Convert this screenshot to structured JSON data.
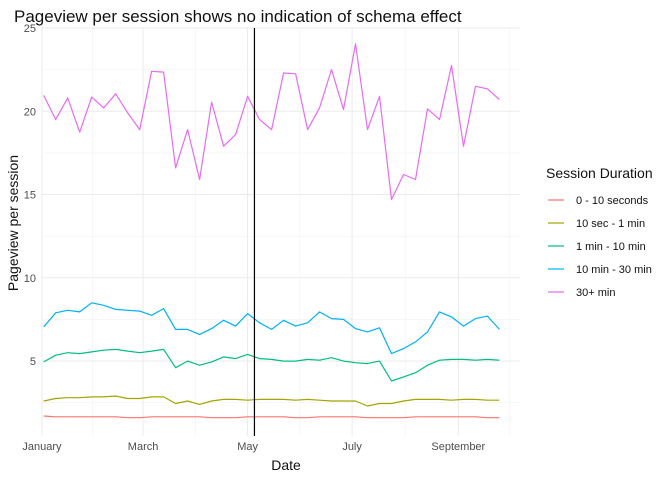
{
  "chart_data": {
    "type": "line",
    "title": "Pageview per session shows no indication of schema effect",
    "xlabel": "Date",
    "ylabel": "Pageview per session",
    "ylim": [
      0.5,
      25
    ],
    "yticks": [
      5,
      10,
      15,
      20,
      25
    ],
    "xlim": [
      "2017-01-01",
      "2017-10-07"
    ],
    "xticks": [
      {
        "date": "2017-01-01",
        "label": "January"
      },
      {
        "date": "2017-03-01",
        "label": "March"
      },
      {
        "date": "2017-05-01",
        "label": "May"
      },
      {
        "date": "2017-07-01",
        "label": "July"
      },
      {
        "date": "2017-09-01",
        "label": "September"
      }
    ],
    "grid": true,
    "legend_position": "right",
    "legend_title": "Session Duration",
    "annotation_vline": "2017-05-05",
    "x": [
      "2017-01-02",
      "2017-01-09",
      "2017-01-16",
      "2017-01-23",
      "2017-01-30",
      "2017-02-06",
      "2017-02-13",
      "2017-02-20",
      "2017-02-27",
      "2017-03-06",
      "2017-03-13",
      "2017-03-20",
      "2017-03-27",
      "2017-04-03",
      "2017-04-10",
      "2017-04-17",
      "2017-04-24",
      "2017-05-01",
      "2017-05-08",
      "2017-05-15",
      "2017-05-22",
      "2017-05-29",
      "2017-06-05",
      "2017-06-12",
      "2017-06-19",
      "2017-06-26",
      "2017-07-03",
      "2017-07-10",
      "2017-07-17",
      "2017-07-24",
      "2017-07-31",
      "2017-08-07",
      "2017-08-14",
      "2017-08-21",
      "2017-08-28",
      "2017-09-04",
      "2017-09-11",
      "2017-09-18",
      "2017-09-25"
    ],
    "series": [
      {
        "name": "0 - 10 seconds",
        "color": "#F8766D",
        "values": [
          1.7,
          1.65,
          1.65,
          1.65,
          1.65,
          1.65,
          1.65,
          1.6,
          1.6,
          1.65,
          1.65,
          1.65,
          1.65,
          1.65,
          1.6,
          1.6,
          1.6,
          1.65,
          1.65,
          1.65,
          1.65,
          1.6,
          1.6,
          1.65,
          1.65,
          1.65,
          1.65,
          1.6,
          1.6,
          1.6,
          1.6,
          1.65,
          1.65,
          1.65,
          1.65,
          1.65,
          1.65,
          1.6,
          1.6
        ]
      },
      {
        "name": "10 sec - 1 min",
        "color": "#A3A500",
        "values": [
          2.6,
          2.75,
          2.8,
          2.8,
          2.85,
          2.85,
          2.9,
          2.75,
          2.75,
          2.85,
          2.85,
          2.45,
          2.6,
          2.4,
          2.6,
          2.7,
          2.7,
          2.65,
          2.7,
          2.7,
          2.7,
          2.65,
          2.7,
          2.65,
          2.6,
          2.6,
          2.6,
          2.3,
          2.45,
          2.45,
          2.6,
          2.7,
          2.7,
          2.7,
          2.65,
          2.7,
          2.7,
          2.65,
          2.65
        ]
      },
      {
        "name": "1 min - 10 min",
        "color": "#00BF7D",
        "values": [
          4.95,
          5.35,
          5.5,
          5.45,
          5.55,
          5.65,
          5.7,
          5.6,
          5.5,
          5.6,
          5.7,
          4.6,
          5.0,
          4.75,
          4.95,
          5.25,
          5.15,
          5.4,
          5.15,
          5.1,
          5.0,
          5.0,
          5.1,
          5.05,
          5.2,
          5.0,
          4.9,
          4.85,
          5.0,
          3.8,
          4.05,
          4.3,
          4.75,
          5.05,
          5.1,
          5.1,
          5.05,
          5.1,
          5.05
        ]
      },
      {
        "name": "10 min - 30 min",
        "color": "#00B0F6",
        "values": [
          7.05,
          7.9,
          8.05,
          7.95,
          8.5,
          8.35,
          8.1,
          8.05,
          8.0,
          7.75,
          8.15,
          6.9,
          6.9,
          6.6,
          6.95,
          7.45,
          7.1,
          7.85,
          7.3,
          6.9,
          7.45,
          7.1,
          7.3,
          7.95,
          7.55,
          7.5,
          6.95,
          6.75,
          7.0,
          5.45,
          5.75,
          6.15,
          6.75,
          7.95,
          7.65,
          7.1,
          7.55,
          7.7,
          6.9
        ]
      },
      {
        "name": "30+ min",
        "color": "#E76BF3",
        "values": [
          20.95,
          19.5,
          20.8,
          18.75,
          20.85,
          20.2,
          21.05,
          19.9,
          18.9,
          22.4,
          22.35,
          16.6,
          18.9,
          15.9,
          20.55,
          17.9,
          18.6,
          20.9,
          19.5,
          18.9,
          22.3,
          22.25,
          18.9,
          20.2,
          22.5,
          20.1,
          24.05,
          18.9,
          20.9,
          14.7,
          16.2,
          15.9,
          20.15,
          19.5,
          22.75,
          17.9,
          21.5,
          21.35,
          20.7
        ]
      }
    ]
  }
}
